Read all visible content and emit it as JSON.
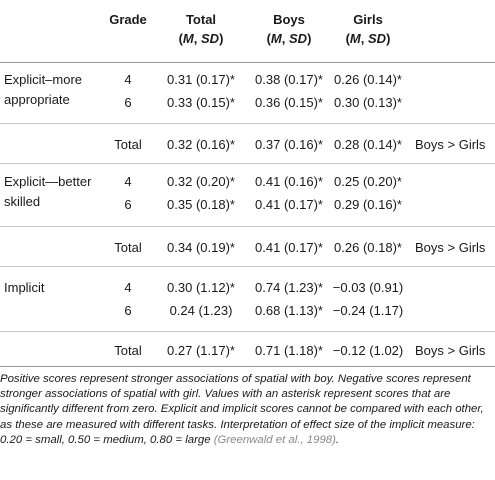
{
  "header": {
    "grade": "Grade",
    "total": "Total",
    "boys": "Boys",
    "girls": "Girls",
    "stat_m": "M",
    "stat_sd": "SD"
  },
  "sections": [
    {
      "label_line1": "Explicit–more",
      "label_line2": "appropriate",
      "rows": [
        {
          "grade": "4",
          "total": "0.31 (0.17)*",
          "boys": "0.38 (0.17)*",
          "girls": "0.26 (0.14)*"
        },
        {
          "grade": "6",
          "total": "0.33 (0.15)*",
          "boys": "0.36 (0.15)*",
          "girls": "0.30 (0.13)*"
        }
      ],
      "summary": {
        "label": "Total",
        "total": "0.32 (0.16)*",
        "boys": "0.37 (0.16)*",
        "girls": "0.28 (0.14)*",
        "diff": "Boys > Girls"
      }
    },
    {
      "label_line1": "Explicit—better",
      "label_line2": "skilled",
      "rows": [
        {
          "grade": "4",
          "total": "0.32 (0.20)*",
          "boys": "0.41 (0.16)*",
          "girls": "0.25 (0.20)*"
        },
        {
          "grade": "6",
          "total": "0.35 (0.18)*",
          "boys": "0.41 (0.17)*",
          "girls": "0.29 (0.16)*"
        }
      ],
      "summary": {
        "label": "Total",
        "total": "0.34 (0.19)*",
        "boys": "0.41 (0.17)*",
        "girls": "0.26 (0.18)*",
        "diff": "Boys > Girls"
      }
    },
    {
      "label_line1": "Implicit",
      "label_line2": "",
      "rows": [
        {
          "grade": "4",
          "total": "0.30 (1.12)*",
          "boys": "0.74 (1.23)*",
          "girls": "−0.03 (0.91)"
        },
        {
          "grade": "6",
          "total": "0.24 (1.23)",
          "boys": "0.68 (1.13)*",
          "girls": "−0.24 (1.17)"
        }
      ],
      "summary": {
        "label": "Total",
        "total": "0.27 (1.17)*",
        "boys": "0.71 (1.18)*",
        "girls": "−0.12 (1.02)",
        "diff": "Boys > Girls"
      }
    }
  ],
  "note": {
    "text": "Positive scores represent stronger associations of spatial with boy. Negative scores represent stronger associations of spatial with girl. Values with an asterisk represent scores that are significantly different from zero. Explicit and implicit scores cannot be compared with each other, as these are measured with different tasks. Interpretation of effect size of the implicit measure: 0.20 = small, 0.50 = medium, 0.80 = large ",
    "citation": "(Greenwald et al., 1998)",
    "end": "."
  }
}
